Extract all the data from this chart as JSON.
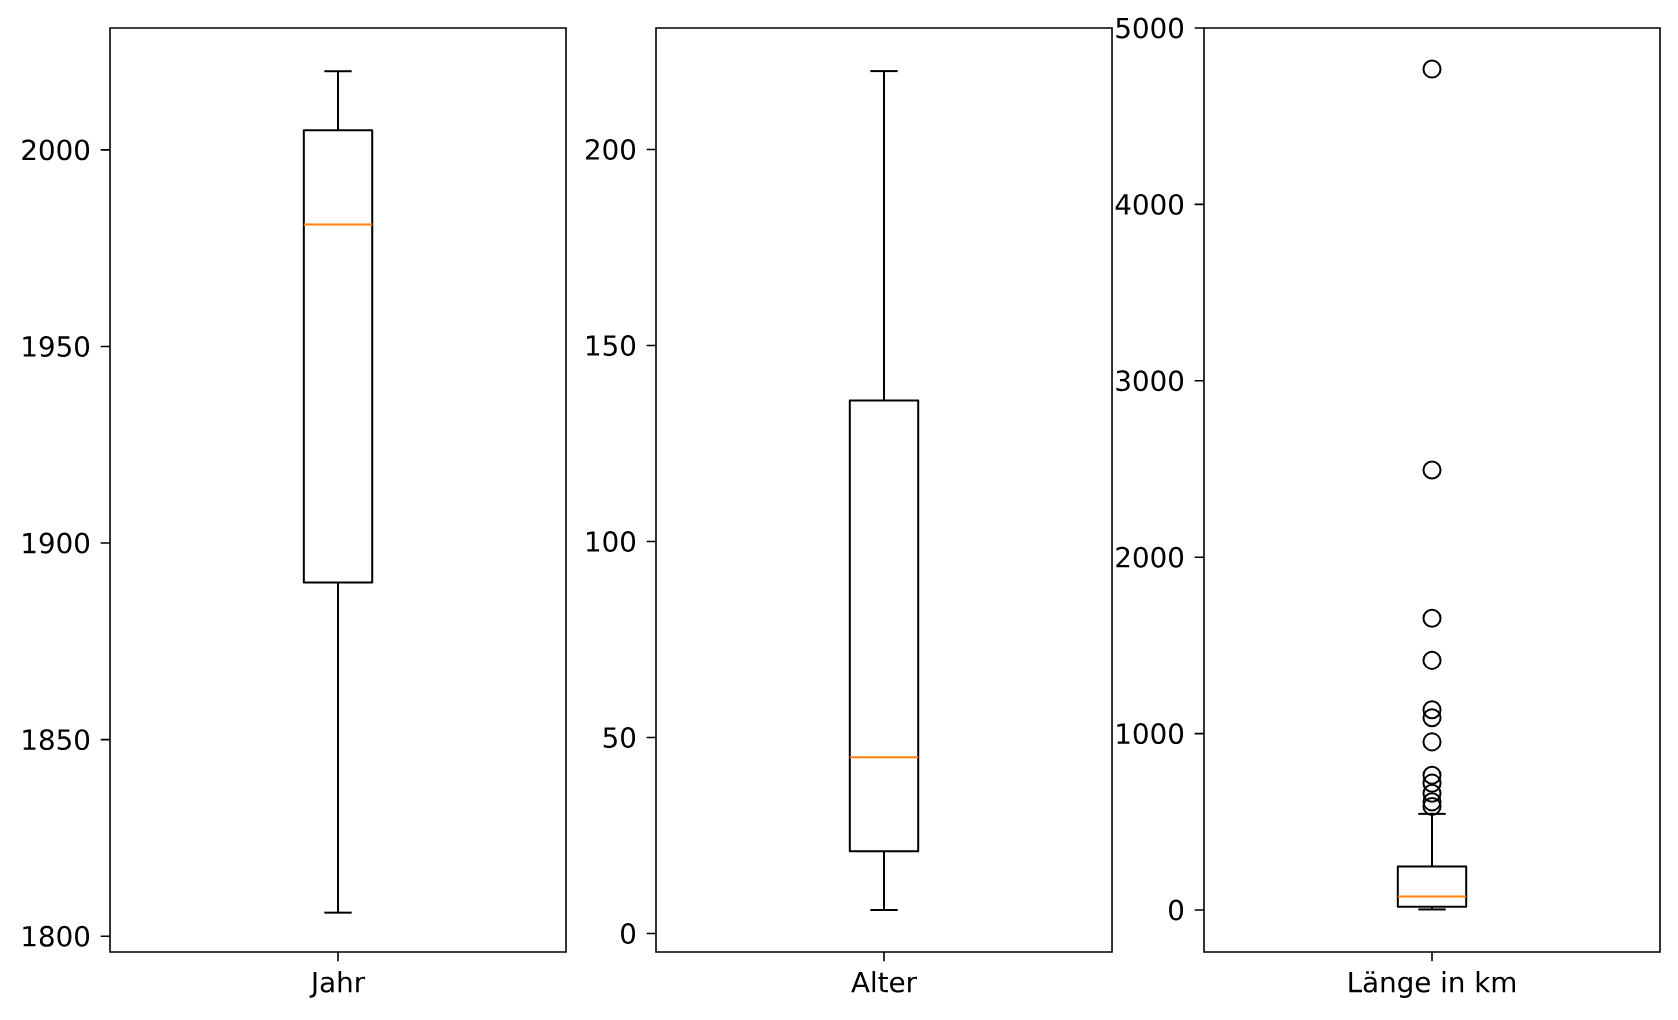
{
  "chart_data": [
    {
      "type": "box",
      "categories": [
        "Jahr"
      ],
      "color": "#000000",
      "boxes": [
        {
          "low": 1806,
          "q1": 1890,
          "median": 1981,
          "q3": 2005,
          "high": 2020
        }
      ],
      "ylim": [
        1796,
        2031
      ],
      "yticks": [
        1800,
        1850,
        1900,
        1950,
        2000
      ]
    },
    {
      "type": "box",
      "categories": [
        "Alter"
      ],
      "color": "#000000",
      "boxes": [
        {
          "low": 6,
          "q1": 21,
          "median": 45,
          "q3": 136,
          "high": 220
        }
      ],
      "ylim": [
        -4.7,
        231
      ],
      "yticks": [
        0,
        50,
        100,
        150,
        200
      ]
    },
    {
      "type": "box",
      "categories": [
        "Länge in km"
      ],
      "color": "#000000",
      "marker": "circle",
      "boxes": [
        {
          "low": 3,
          "q1": 19,
          "median": 76,
          "q3": 246,
          "high": 545,
          "outliers": [
            4767,
            2494,
            1654,
            1415,
            1135,
            1090,
            953,
            764,
            719,
            662,
            613,
            587
          ]
        }
      ],
      "ylim": [
        -238,
        5000
      ],
      "yticks": [
        0,
        1000,
        2000,
        3000,
        4000,
        5000
      ]
    }
  ]
}
